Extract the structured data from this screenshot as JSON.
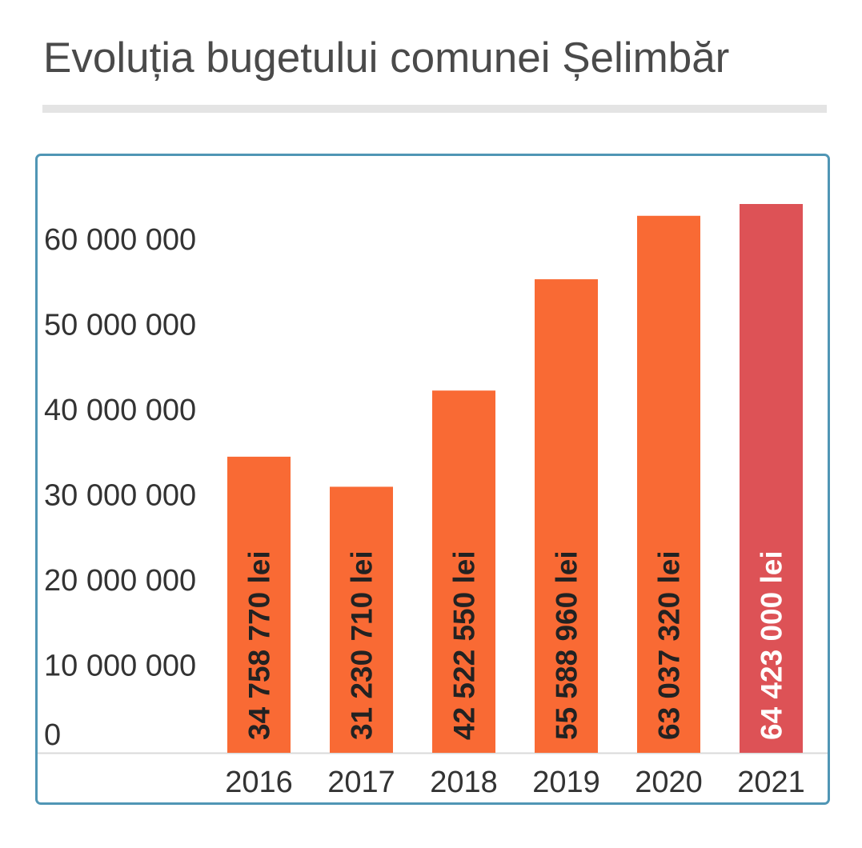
{
  "title": "Evoluția bugetului comunei Șelimbăr",
  "chart_data": {
    "type": "bar",
    "title": "Evoluția bugetului comunei Șelimbăr",
    "xlabel": "",
    "ylabel": "",
    "categories": [
      "2016",
      "2017",
      "2018",
      "2019",
      "2020",
      "2021"
    ],
    "values": [
      34758770,
      31230710,
      42522550,
      55588960,
      63037320,
      64423000
    ],
    "data_labels": [
      "34 758 770 lei",
      "31 230 710 lei",
      "42 522 550 lei",
      "55 588 960 lei",
      "63 037 320 lei",
      "64 423 000 lei"
    ],
    "yticks": [
      0,
      10000000,
      20000000,
      30000000,
      40000000,
      50000000,
      60000000
    ],
    "ytick_labels": [
      "0",
      "10 000 000",
      "20 000 000",
      "30 000 000",
      "40 000 000",
      "50 000 000",
      "60 000 000"
    ],
    "ylim": [
      0,
      64423000
    ],
    "grid": false,
    "legend": "none",
    "colors": {
      "bar": "#f96a34",
      "highlight_bar": "#dd5256",
      "label_on_bar": "#222222",
      "label_on_highlight": "#ffffff",
      "card_border": "#5096b5"
    },
    "highlight_index": 5
  }
}
